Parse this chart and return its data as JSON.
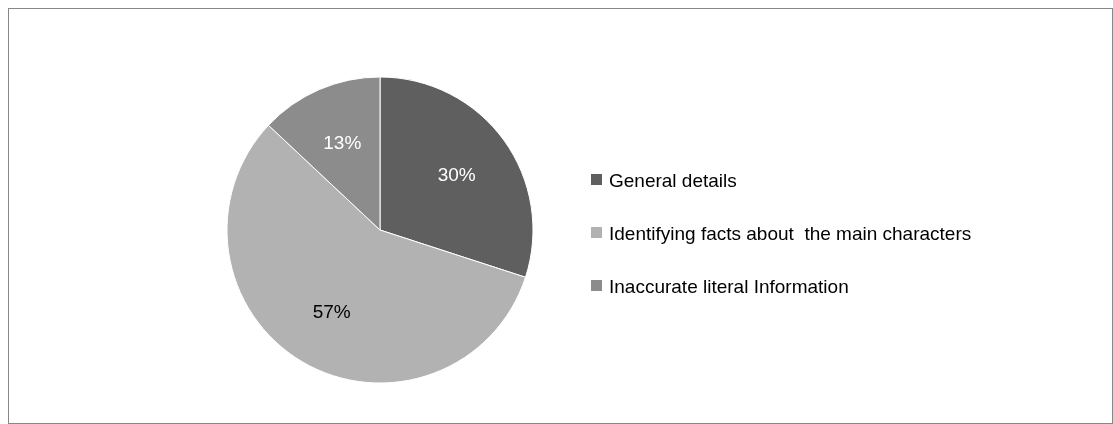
{
  "chart_data": {
    "type": "pie",
    "categories": [
      "General details",
      "Identifying facts about  the main characters",
      "Inaccurate literal Information"
    ],
    "values": [
      30,
      57,
      13
    ],
    "colors": [
      "#5f5f5f",
      "#b2b2b2",
      "#8c8c8c"
    ],
    "value_labels": [
      "30%",
      "57%",
      "13%"
    ],
    "legend": "right"
  }
}
